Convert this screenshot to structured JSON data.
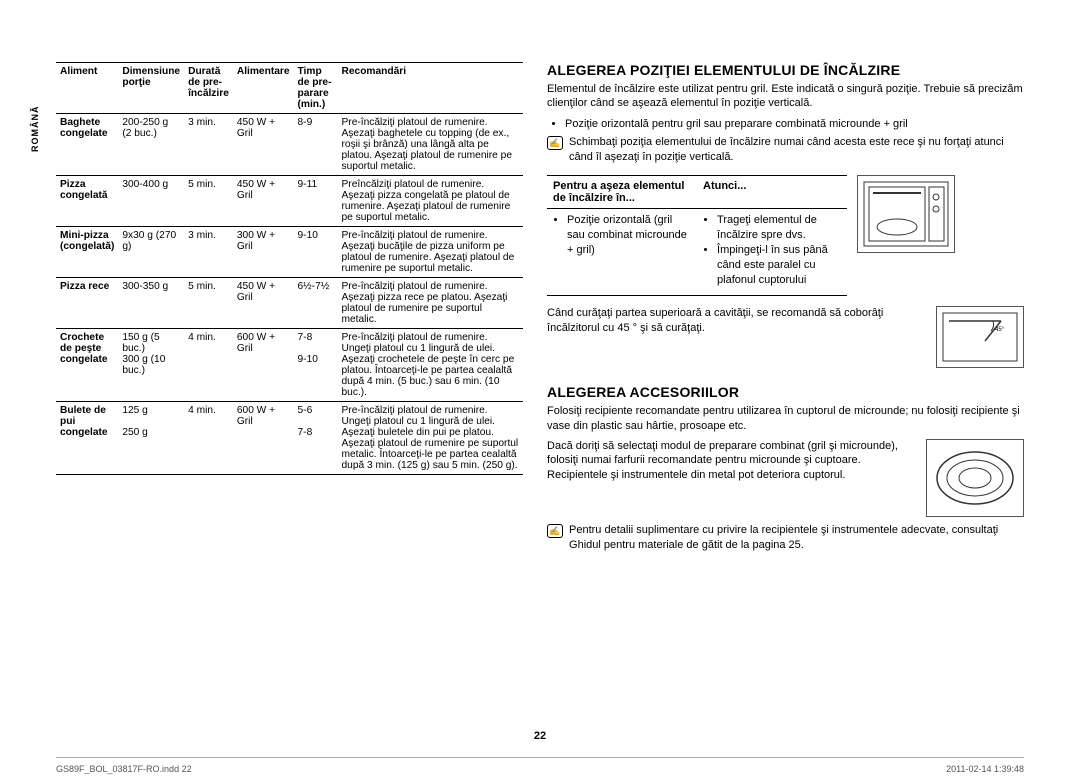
{
  "sideLabel": "ROMÂNĂ",
  "foodTable": {
    "headers": {
      "food": "Aliment",
      "dim": "Dimensiune porţie",
      "dur": "Durată de pre-încălzire",
      "power": "Alimentare",
      "time": "Timp de pre-parare (min.)",
      "rec": "Recomandări"
    },
    "rows": [
      {
        "food": "Baghete congelate",
        "dim": "200-250 g (2 buc.)",
        "dur": "3 min.",
        "power": "450 W + Gril",
        "time": "8-9",
        "rec": "Pre-încălziţi platoul de rumenire. Aşezaţi baghetele cu topping (de ex., roşii şi brânză) una lângă alta pe platou. Aşezaţi platoul de rumenire pe suportul metalic."
      },
      {
        "food": "Pizza congelată",
        "dim": "300-400 g",
        "dur": "5 min.",
        "power": "450 W + Gril",
        "time": "9-11",
        "rec": "Preîncălziţi platoul de rumenire. Aşezaţi pizza congelată pe platoul de rumenire. Aşezaţi platoul de rumenire pe suportul metalic."
      },
      {
        "food": "Mini-pizza (congelată)",
        "dim": "9x30 g (270 g)",
        "dur": "3 min.",
        "power": "300 W + Gril",
        "time": "9-10",
        "rec": "Pre-încălziţi platoul de rumenire. Aşezaţi bucăţile de pizza uniform pe platoul de rumenire. Aşezaţi platoul de rumenire pe suportul metalic."
      },
      {
        "food": "Pizza rece",
        "dim": "300-350 g",
        "dur": "5 min.",
        "power": "450 W + Gril",
        "time": "6½-7½",
        "rec": "Pre-încălziţi platoul de rumenire. Aşezaţi pizza rece pe platou. Aşezaţi platoul de rumenire pe suportul metalic."
      },
      {
        "food": "Crochete de peşte congelate",
        "dim": "150 g (5 buc.)\n300 g (10 buc.)",
        "dur": "4 min.",
        "power": "600 W + Gril",
        "time": "7-8\n\n9-10",
        "rec": "Pre-încălziţi platoul de rumenire. Ungeţi platoul cu 1 lingură de ulei. Aşezaţi crochetele de peşte în cerc pe platou. Întoarceţi-le pe partea cealaltă după 4 min. (5 buc.) sau 6 min. (10 buc.)."
      },
      {
        "food": "Bulete de pui congelate",
        "dim": "125 g\n\n250 g",
        "dur": "4 min.",
        "power": "600 W + Gril",
        "time": "5-6\n\n7-8",
        "rec": "Pre-încălziţi platoul de rumenire. Ungeţi platoul cu 1 lingură de ulei. Aşezaţi buletele din pui pe platou. Aşezaţi platoul de rumenire pe suportul metalic. Întoarceţi-le pe partea cealaltă după 3 min. (125 g) sau 5 min. (250 g)."
      }
    ]
  },
  "right": {
    "sec1Title": "ALEGEREA POZIŢIEI ELEMENTULUI DE ÎNCĂLZIRE",
    "sec1p1": "Elementul de încălzire este utilizat pentru gril. Este indicată o singură poziţie. Trebuie să precizăm clienţilor când se aşează elementul în poziţie verticală.",
    "sec1bullet": "Poziţie orizontală pentru gril sau preparare combinată microunde + gril",
    "sec1note": "Schimbaţi poziţia elementului de încălzire numai când acesta este rece şi nu forţaţi atunci când îl aşezaţi în poziţie verticală.",
    "posTable": {
      "h1": "Pentru a aşeza elementul de încălzire în...",
      "h2": "Atunci...",
      "c1": "Poziţie orizontală (gril sau combinat microunde + gril)",
      "c2a": "Trageţi elementul de încălzire spre dvs.",
      "c2b": "Împingeţi-l în sus până când este paralel cu plafonul cuptorului"
    },
    "cleanText": "Când curăţaţi partea superioară a cavităţii, se recomandă să coborâţi încălzitorul cu 45 ° şi să curăţaţi.",
    "angleLabel": "45°",
    "sec2Title": "ALEGEREA ACCESORIILOR",
    "sec2p1": "Folosiţi recipiente recomandate pentru utilizarea în cuptorul de microunde; nu folosiţi recipiente şi vase din plastic sau hârtie, prosoape etc.",
    "sec2p2": "Dacă doriţi să selectaţi modul de preparare combinat (gril şi microunde), folosiţi numai farfurii recomandate pentru microunde şi cuptoare. Recipientele şi instrumentele din metal pot deteriora cuptorul.",
    "sec2note": "Pentru detalii suplimentare cu privire la recipientele şi instrumentele adecvate, consultaţi Ghidul pentru materiale de gătit de la pagina 25."
  },
  "pageNum": "22",
  "footerLeft": "GS89F_BOL_03817F-RO.indd   22",
  "footerRight": "2011-02-14   1:39:48"
}
